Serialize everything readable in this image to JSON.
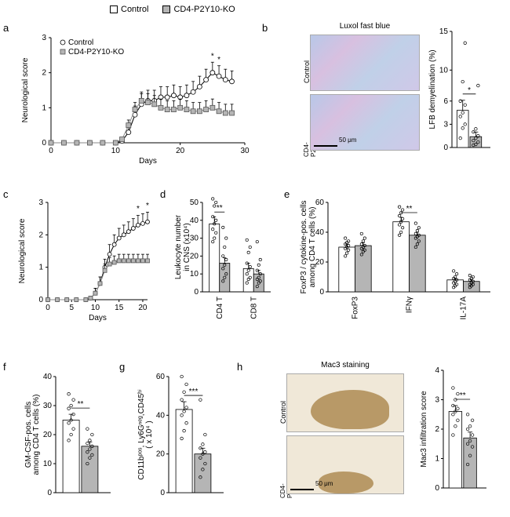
{
  "legend": {
    "control": "Control",
    "ko": "CD4-P2Y10-KO"
  },
  "panel_a": {
    "label": "a",
    "type": "line",
    "ylabel": "Neurological score",
    "xlabel": "Days",
    "xlim": [
      0,
      30
    ],
    "xtick_step": 10,
    "ylim": [
      0,
      3
    ],
    "ytick_step": 1,
    "legend_inside": {
      "control": "Control",
      "ko": "CD4-P2Y10-KO"
    },
    "days": [
      0,
      2,
      4,
      6,
      8,
      10,
      11,
      12,
      13,
      14,
      15,
      16,
      17,
      18,
      19,
      20,
      21,
      22,
      23,
      24,
      25,
      26,
      27,
      28
    ],
    "control": [
      0,
      0,
      0,
      0,
      0,
      0,
      0.05,
      0.3,
      0.8,
      1.1,
      1.2,
      1.2,
      1.3,
      1.3,
      1.35,
      1.3,
      1.35,
      1.45,
      1.6,
      1.8,
      2.0,
      1.9,
      1.8,
      1.75
    ],
    "ko": [
      0,
      0,
      0,
      0,
      0,
      0,
      0.1,
      0.5,
      0.95,
      1.2,
      1.15,
      1.1,
      1.0,
      0.95,
      0.95,
      1.0,
      0.95,
      0.9,
      0.9,
      0.95,
      1.0,
      0.9,
      0.85,
      0.85
    ],
    "err_control": [
      0,
      0,
      0,
      0,
      0,
      0,
      0.05,
      0.2,
      0.25,
      0.3,
      0.3,
      0.3,
      0.3,
      0.3,
      0.3,
      0.3,
      0.3,
      0.3,
      0.3,
      0.3,
      0.3,
      0.3,
      0.3,
      0.3
    ],
    "err_ko": [
      0,
      0,
      0,
      0,
      0,
      0,
      0.05,
      0.15,
      0.2,
      0.25,
      0.25,
      0.25,
      0.25,
      0.25,
      0.25,
      0.25,
      0.25,
      0.25,
      0.25,
      0.25,
      0.25,
      0.25,
      0.25,
      0.25
    ],
    "sig_days": [
      25,
      26
    ],
    "marker_size": 3,
    "colors": {
      "control": "#000000",
      "ko": "#888888"
    }
  },
  "panel_b": {
    "label": "b",
    "title": "Luxol fast blue",
    "img_labels": {
      "top": "Control",
      "bottom": "CD4-\nP2Y10-KO"
    },
    "scalebar": "50 μm",
    "bar": {
      "type": "bar-scatter",
      "ylabel": "LFB demyelination (%)",
      "ylim": [
        0,
        15
      ],
      "yticks": [
        0,
        3,
        6,
        10,
        15
      ],
      "control": {
        "mean": 4.8,
        "sem": 1.3,
        "points": [
          1.2,
          2.5,
          3.0,
          4.0,
          4.5,
          5.5,
          6.0,
          8.5,
          13.5
        ],
        "color": "#ffffff"
      },
      "ko": {
        "mean": 1.4,
        "sem": 0.6,
        "points": [
          0.3,
          0.4,
          0.7,
          0.9,
          1.2,
          1.5,
          2.0,
          2.4,
          8.0
        ],
        "color": "#b5b5b5"
      },
      "sig": "*"
    }
  },
  "panel_c": {
    "label": "c",
    "type": "line",
    "ylabel": "Neurological score",
    "xlabel": "Days",
    "xlim": [
      0,
      21
    ],
    "xtick_step": 5,
    "ylim": [
      0,
      3
    ],
    "ytick_step": 1,
    "days": [
      0,
      2,
      4,
      6,
      8,
      9,
      10,
      11,
      12,
      13,
      14,
      15,
      16,
      17,
      18,
      19,
      20,
      21
    ],
    "control": [
      0,
      0,
      0,
      0,
      0,
      0.05,
      0.2,
      0.5,
      1.0,
      1.4,
      1.7,
      1.9,
      2.0,
      2.1,
      2.2,
      2.3,
      2.35,
      2.4
    ],
    "ko": [
      0,
      0,
      0,
      0,
      0,
      0.05,
      0.2,
      0.5,
      0.9,
      1.1,
      1.15,
      1.2,
      1.2,
      1.2,
      1.2,
      1.2,
      1.2,
      1.2
    ],
    "err_control": [
      0,
      0,
      0,
      0,
      0,
      0.05,
      0.15,
      0.2,
      0.25,
      0.3,
      0.3,
      0.3,
      0.3,
      0.3,
      0.3,
      0.3,
      0.3,
      0.3
    ],
    "err_ko": [
      0,
      0,
      0,
      0,
      0,
      0.05,
      0.15,
      0.2,
      0.2,
      0.2,
      0.2,
      0.2,
      0.2,
      0.2,
      0.2,
      0.2,
      0.2,
      0.2
    ],
    "sig_days": [
      19,
      21
    ],
    "marker_size": 2.5
  },
  "panel_d": {
    "label": "d",
    "type": "grouped-bar",
    "ylabel": "Leukocyte number\nin CNS (x10⁴)",
    "ylim": [
      0,
      50
    ],
    "ytick_step": 10,
    "categories": [
      "CD4 T",
      "CD8 T"
    ],
    "control": {
      "means": [
        38,
        13
      ],
      "sems": [
        4,
        3
      ],
      "points": [
        [
          28,
          30,
          33,
          35,
          38,
          40,
          42,
          48,
          50,
          52
        ],
        [
          5,
          7,
          8,
          10,
          12,
          14,
          16,
          22,
          25,
          29
        ]
      ],
      "color": "#ffffff"
    },
    "ko": {
      "means": [
        16,
        10
      ],
      "sems": [
        3,
        2
      ],
      "points": [
        [
          6,
          8,
          10,
          13,
          15,
          18,
          20,
          25,
          30,
          36
        ],
        [
          3,
          5,
          6,
          7,
          8,
          10,
          12,
          15,
          18,
          28
        ]
      ],
      "color": "#b5b5b5"
    },
    "sig": [
      "**",
      ""
    ]
  },
  "panel_e": {
    "label": "e",
    "type": "grouped-bar",
    "ylabel": "FoxP3 / cytokine-pos. cells\namong CD4 T cells (%)",
    "ylim": [
      0,
      60
    ],
    "ytick_step": 20,
    "categories": [
      "FoxP3",
      "IFNγ",
      "IL-17A"
    ],
    "control": {
      "means": [
        30,
        47,
        8
      ],
      "sems": [
        2,
        3,
        1
      ],
      "points": [
        [
          24,
          26,
          28,
          29,
          30,
          31,
          32,
          33,
          34,
          36
        ],
        [
          38,
          40,
          43,
          45,
          47,
          49,
          51,
          53,
          55,
          57
        ],
        [
          3,
          4,
          5,
          6,
          7,
          8,
          9,
          10,
          12,
          14
        ]
      ],
      "color": "#ffffff"
    },
    "ko": {
      "means": [
        31,
        38,
        7
      ],
      "sems": [
        2,
        2,
        1
      ],
      "points": [
        [
          25,
          27,
          28,
          29,
          30,
          31,
          32,
          34,
          36,
          39
        ],
        [
          30,
          32,
          34,
          36,
          37,
          38,
          39,
          41,
          43,
          46
        ],
        [
          3,
          4,
          5,
          5,
          6,
          7,
          8,
          9,
          10,
          11
        ]
      ],
      "color": "#b5b5b5"
    },
    "sig": [
      "",
      "**",
      ""
    ]
  },
  "panel_f": {
    "label": "f",
    "type": "bar-scatter",
    "ylabel": "GM-CSF-pos. cells\namong CD4 T cells (%)",
    "ylim": [
      0,
      40
    ],
    "ytick_step": 10,
    "control": {
      "mean": 25,
      "sem": 2,
      "points": [
        18,
        20,
        22,
        24,
        25,
        27,
        29,
        30,
        32,
        34
      ],
      "color": "#ffffff"
    },
    "ko": {
      "mean": 16,
      "sem": 1.5,
      "points": [
        10,
        12,
        13,
        14,
        15,
        16,
        17,
        18,
        20,
        22
      ],
      "color": "#b5b5b5"
    },
    "sig": "**"
  },
  "panel_g": {
    "label": "g",
    "type": "bar-scatter",
    "ylabel": "CD11bᵖᵒˢ, Ly6Gⁿᵉᵍ,CD45ʰⁱ\n( x 10⁴ )",
    "ylim": [
      0,
      60
    ],
    "ytick_step": 20,
    "control": {
      "mean": 43,
      "sem": 4,
      "points": [
        28,
        32,
        36,
        40,
        42,
        44,
        48,
        52,
        56,
        60
      ],
      "color": "#ffffff"
    },
    "ko": {
      "mean": 20,
      "sem": 3,
      "points": [
        8,
        12,
        15,
        18,
        20,
        21,
        23,
        25,
        30,
        48
      ],
      "color": "#b5b5b5"
    },
    "sig": "***"
  },
  "panel_h": {
    "label": "h",
    "title": "Mac3 staining",
    "img_labels": {
      "top": "Control",
      "bottom": "CD4-\nP2Y10-KO"
    },
    "scalebar": "50 μm",
    "bar": {
      "type": "bar-scatter",
      "ylabel": "Mac3 infiltration score",
      "ylim": [
        0,
        4
      ],
      "ytick_step": 1,
      "control": {
        "mean": 2.6,
        "sem": 0.2,
        "points": [
          1.8,
          2.1,
          2.3,
          2.5,
          2.6,
          2.7,
          2.8,
          3.0,
          3.2,
          3.4
        ],
        "color": "#ffffff"
      },
      "ko": {
        "mean": 1.7,
        "sem": 0.2,
        "points": [
          0.8,
          1.1,
          1.4,
          1.5,
          1.6,
          1.8,
          2.0,
          2.1,
          2.3,
          2.5
        ],
        "color": "#b5b5b5"
      },
      "sig": "**"
    }
  },
  "colors": {
    "axis": "#000000",
    "control_fill": "#ffffff",
    "ko_fill": "#b5b5b5",
    "background": "#ffffff"
  }
}
